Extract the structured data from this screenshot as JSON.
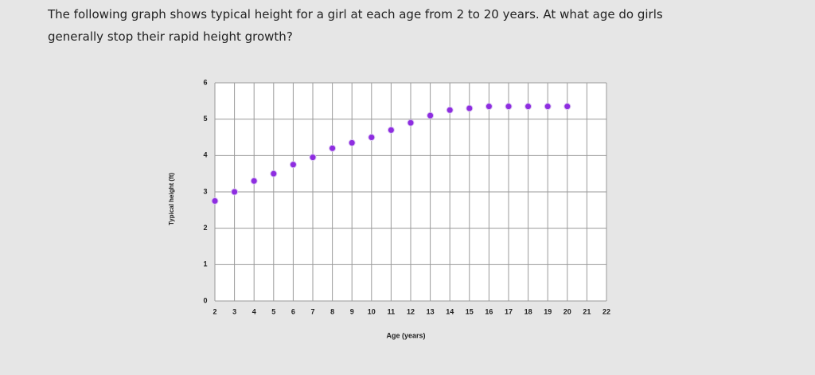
{
  "question_lines": [
    "The following graph shows typical height for a girl at each age from 2 to 20 years. At what age do girls",
    "generally stop their rapid height growth?"
  ],
  "chart_data": {
    "type": "scatter",
    "x_label": "Age (years)",
    "y_label": "Typical height (ft)",
    "x": [
      2,
      3,
      4,
      5,
      6,
      7,
      8,
      9,
      10,
      11,
      12,
      13,
      14,
      15,
      16,
      17,
      18,
      19,
      20
    ],
    "values": [
      2.75,
      3.0,
      3.3,
      3.5,
      3.75,
      3.95,
      4.2,
      4.35,
      4.5,
      4.7,
      4.9,
      5.1,
      5.25,
      5.3,
      5.35,
      5.35,
      5.35,
      5.35,
      5.35
    ],
    "color": "#8e2de0",
    "xlim": [
      2,
      22
    ],
    "xticks": [
      2,
      3,
      4,
      5,
      6,
      7,
      8,
      9,
      10,
      11,
      12,
      13,
      14,
      15,
      16,
      17,
      18,
      19,
      20,
      21,
      22
    ],
    "ylim": [
      0,
      6
    ],
    "yticks": [
      0,
      1,
      2,
      3,
      4,
      5,
      6
    ],
    "grid": true
  }
}
